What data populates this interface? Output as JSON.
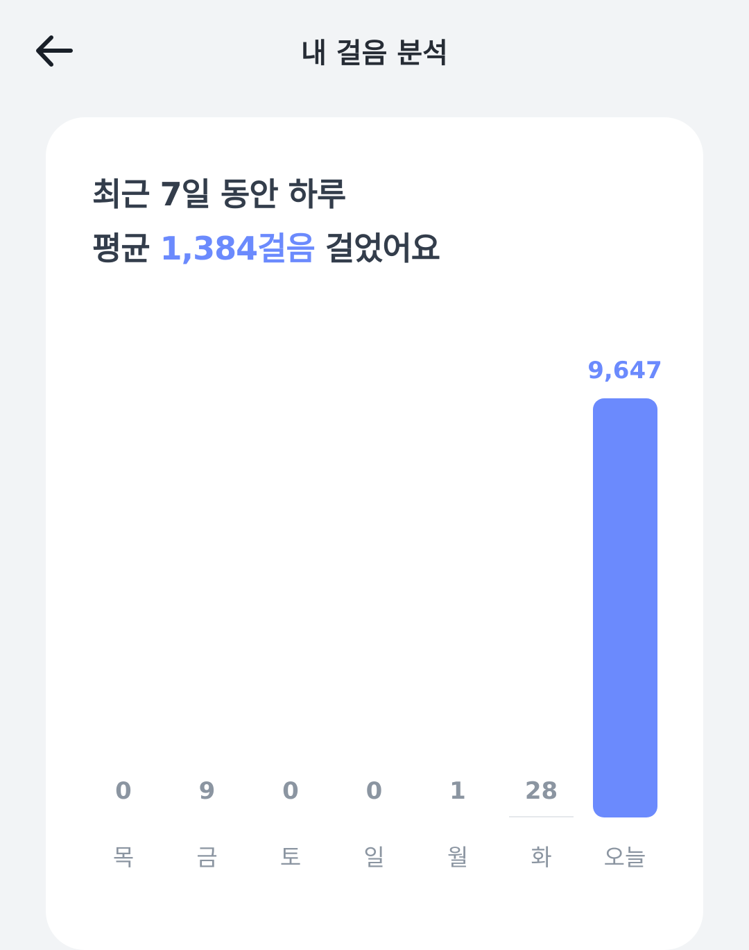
{
  "header": {
    "title": "내 걸음 분석",
    "back_icon": "arrow-left-icon"
  },
  "summary": {
    "line1": "최근 7일 동안 하루",
    "line2_prefix": "평균 ",
    "average": "1,384걸음",
    "line2_suffix": " 걸었어요"
  },
  "colors": {
    "accent": "#6b8afd",
    "label": "#8b95a1",
    "background": "#f2f4f6"
  },
  "chart_data": {
    "type": "bar",
    "categories": [
      "목",
      "금",
      "토",
      "일",
      "월",
      "화",
      "오늘"
    ],
    "values": [
      0,
      9,
      0,
      0,
      1,
      28,
      9647
    ],
    "value_labels": [
      "0",
      "9",
      "0",
      "0",
      "1",
      "28",
      "9,647"
    ],
    "highlight": "오늘"
  }
}
